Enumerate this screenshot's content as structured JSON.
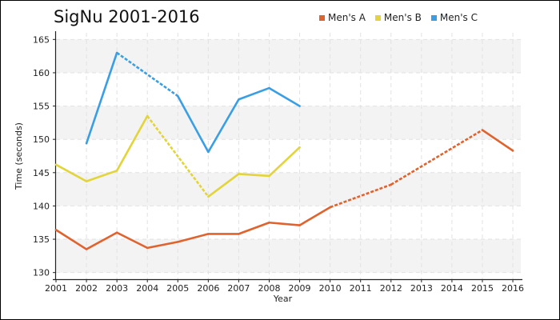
{
  "chart_data": {
    "type": "line",
    "title": "SigNu 2001-2016",
    "xlabel": "Year",
    "ylabel": "Time (seconds)",
    "categories": [
      "2001",
      "2002",
      "2003",
      "2004",
      "2005",
      "2006",
      "2007",
      "2008",
      "2009",
      "2010",
      "2011",
      "2012",
      "2013",
      "2014",
      "2015",
      "2016"
    ],
    "ylim": [
      129,
      166
    ],
    "yticks": [
      130,
      135,
      140,
      145,
      150,
      155,
      160,
      165
    ],
    "grid": true,
    "legend_position": "top-right",
    "series": [
      {
        "name": "Men's A",
        "color": "#e0622d",
        "values": [
          136.4,
          133.5,
          136.0,
          133.7,
          134.6,
          135.8,
          135.8,
          137.5,
          137.1,
          139.8,
          null,
          143.2,
          null,
          null,
          151.4,
          148.3
        ]
      },
      {
        "name": "Men's B",
        "color": "#e2d43a",
        "values": [
          146.2,
          143.7,
          145.3,
          153.5,
          null,
          141.4,
          144.8,
          144.5,
          148.8,
          null,
          null,
          null,
          null,
          null,
          null,
          null
        ]
      },
      {
        "name": "Men's C",
        "color": "#3a9ee4",
        "values": [
          null,
          149.4,
          163.0,
          null,
          156.5,
          148.1,
          156.0,
          157.7,
          155.0,
          null,
          null,
          null,
          null,
          null,
          null,
          null
        ]
      }
    ]
  }
}
